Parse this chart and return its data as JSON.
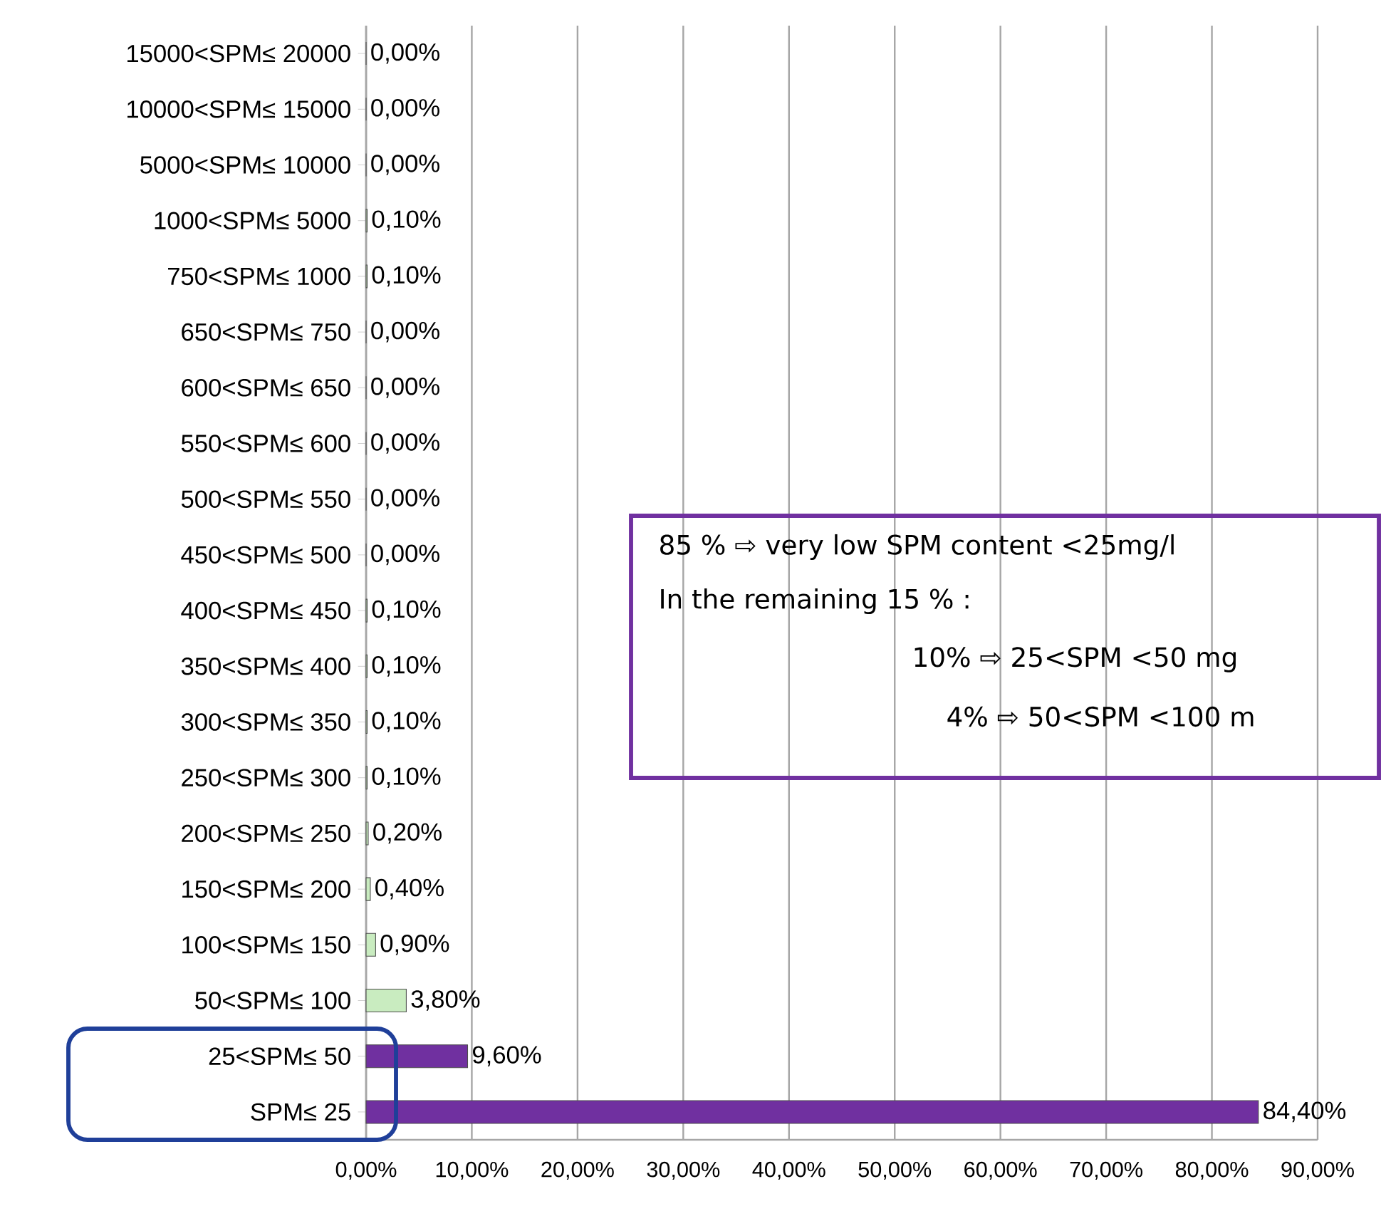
{
  "chart_data": {
    "type": "bar",
    "orientation": "horizontal",
    "categories": [
      "15000<SPM≤ 20000",
      "10000<SPM≤ 15000",
      "5000<SPM≤ 10000",
      "1000<SPM≤ 5000",
      "750<SPM≤ 1000",
      "650<SPM≤ 750",
      "600<SPM≤ 650",
      "550<SPM≤ 600",
      "500<SPM≤ 550",
      "450<SPM≤ 500",
      "400<SPM≤ 450",
      "350<SPM≤ 400",
      "300<SPM≤ 350",
      "250<SPM≤ 300",
      "200<SPM≤ 250",
      "150<SPM≤ 200",
      "100<SPM≤ 150",
      "50<SPM≤ 100",
      "25<SPM≤ 50",
      "SPM≤ 25"
    ],
    "values": [
      0,
      0,
      0,
      0.1,
      0.1,
      0,
      0,
      0,
      0,
      0,
      0.1,
      0.1,
      0.1,
      0.1,
      0.2,
      0.4,
      0.9,
      3.8,
      9.6,
      84.4
    ],
    "value_labels": [
      "0,00%",
      "0,00%",
      "0,00%",
      "0,10%",
      "0,10%",
      "0,00%",
      "0,00%",
      "0,00%",
      "0,00%",
      "0,00%",
      "0,10%",
      "0,10%",
      "0,10%",
      "0,10%",
      "0,20%",
      "0,40%",
      "0,90%",
      "3,80%",
      "9,60%",
      "84,40%"
    ],
    "colors": [
      "#c9ecc0",
      "#c9ecc0",
      "#c9ecc0",
      "#c9ecc0",
      "#c9ecc0",
      "#c9ecc0",
      "#c9ecc0",
      "#c9ecc0",
      "#c9ecc0",
      "#c9ecc0",
      "#c9ecc0",
      "#c9ecc0",
      "#c9ecc0",
      "#c9ecc0",
      "#c9ecc0",
      "#c9ecc0",
      "#c9ecc0",
      "#c9ecc0",
      "#7030a0",
      "#7030a0"
    ],
    "xlim": [
      0,
      90
    ],
    "xticks": [
      {
        "value": 0,
        "label": "0,00%"
      },
      {
        "value": 10,
        "label": "10,00%"
      },
      {
        "value": 20,
        "label": "20,00%"
      },
      {
        "value": 30,
        "label": "30,00%"
      },
      {
        "value": 40,
        "label": "40,00%"
      },
      {
        "value": 50,
        "label": "50,00%"
      },
      {
        "value": 60,
        "label": "60,00%"
      },
      {
        "value": 70,
        "label": "70,00%"
      },
      {
        "value": 80,
        "label": "80,00%"
      },
      {
        "value": 90,
        "label": "90,00%"
      }
    ],
    "grid": "x",
    "annotations": [
      "85 % ⇨ very low SPM content <25mg/l",
      "In the remaining 15 % :",
      "10% ⇨ 25<SPM <50 mg",
      "4% ⇨ 50<SPM <100 m"
    ]
  }
}
